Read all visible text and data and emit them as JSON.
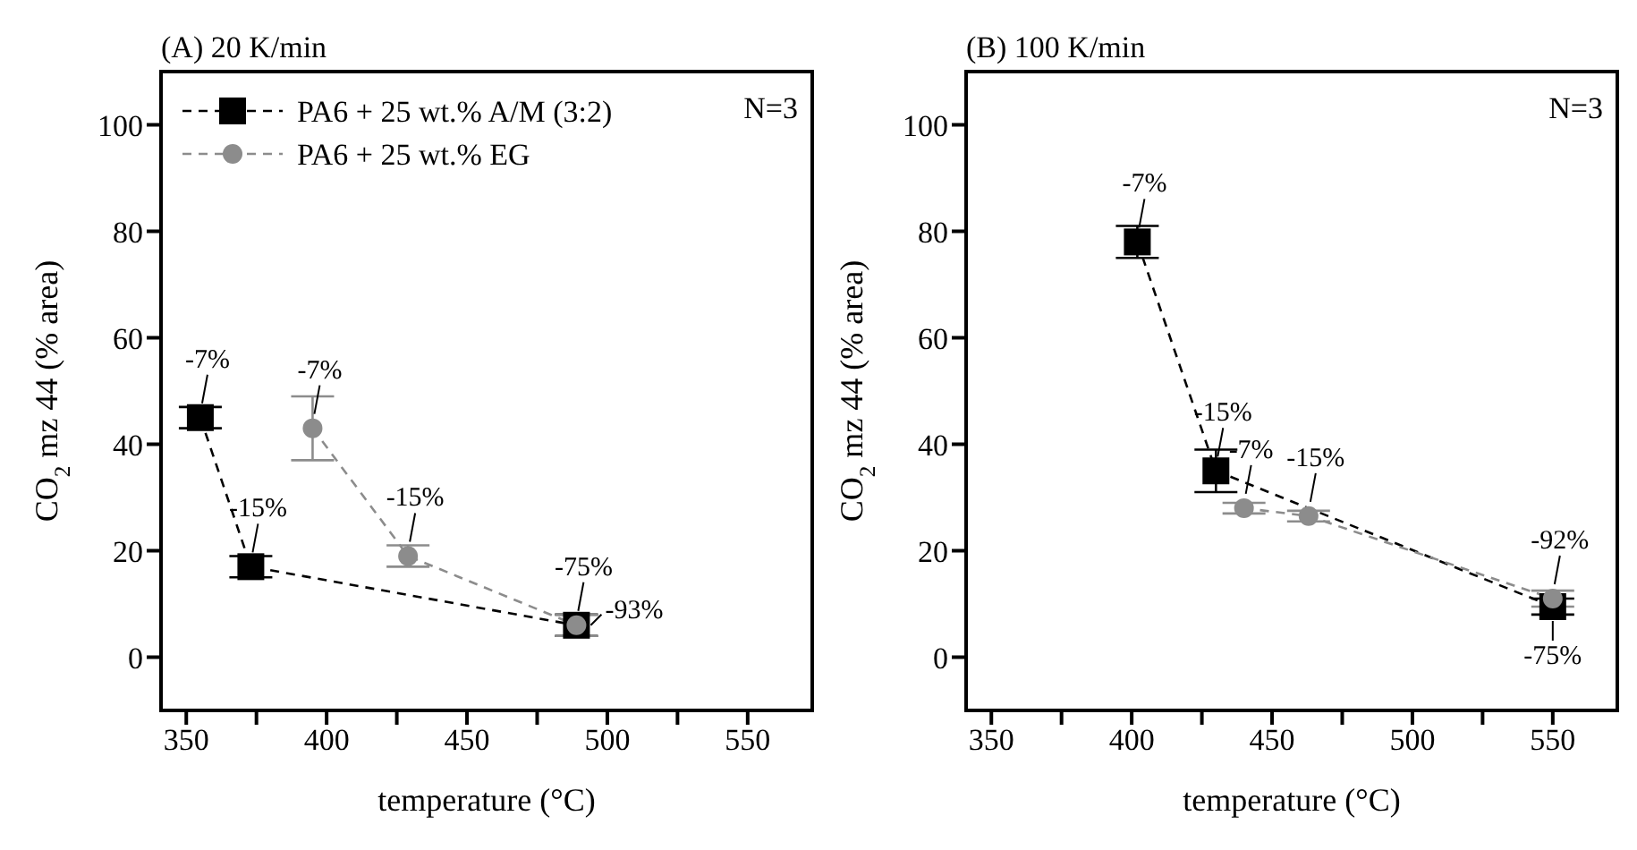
{
  "chart_data": [
    {
      "type": "line",
      "title": "(A) 20 K/min",
      "xlabel": "temperature (°C)",
      "ylabel": "CO$_{2}$ mz 44 (% area)",
      "xlim": [
        341,
        573
      ],
      "xticks": [
        350,
        {
          "value": 375,
          "label": null
        },
        400,
        {
          "value": 425,
          "label": null
        },
        450,
        {
          "value": 475,
          "label": null
        },
        500,
        {
          "value": 525,
          "label": null
        },
        550
      ],
      "ylim": [
        -10,
        110
      ],
      "yticks": [
        0,
        20,
        40,
        60,
        80,
        100
      ],
      "legend": "top left",
      "line_style": "dashed",
      "series": [
        {
          "name": "PA6 + 25 wt.% A/M (3:2)",
          "color": "#000000",
          "marker": "square",
          "x": [
            355,
            373,
            489
          ],
          "values": [
            45,
            17,
            6
          ],
          "errors": [
            2,
            2,
            2
          ]
        },
        {
          "name": "PA6 + 25 wt.% EG",
          "color": "#8c8c8c",
          "marker": "circle",
          "x": [
            395,
            429,
            489
          ],
          "values": [
            43,
            19,
            6
          ],
          "errors": [
            6,
            2,
            2
          ]
        }
      ],
      "annotations": [
        {
          "text": "-7%",
          "x": 355,
          "y": 45
        },
        {
          "text": "-15%",
          "x": 373,
          "y": 17
        },
        {
          "text": "-7%",
          "x": 395,
          "y": 43
        },
        {
          "text": "-15%",
          "x": 429,
          "y": 19
        },
        {
          "text": "-75%",
          "x": 489,
          "y": 6
        },
        {
          "text": "-93%",
          "x": 489,
          "y": 6
        },
        "N=3"
      ]
    },
    {
      "type": "line",
      "title": "(B) 100 K/min",
      "xlabel": "temperature (°C)",
      "ylabel": "CO$_{2}$ mz 44 (% area)",
      "xlim": [
        341,
        573
      ],
      "xticks": [
        350,
        {
          "value": 375,
          "label": null
        },
        400,
        {
          "value": 425,
          "label": null
        },
        450,
        {
          "value": 475,
          "label": null
        },
        500,
        {
          "value": 525,
          "label": null
        },
        550
      ],
      "ylim": [
        -10,
        110
      ],
      "yticks": [
        0,
        20,
        40,
        60,
        80,
        100
      ],
      "line_style": "dashed",
      "series": [
        {
          "color": "#000000",
          "marker": "square",
          "x": [
            402,
            430,
            550
          ],
          "values": [
            78,
            35,
            9.5
          ],
          "errors": [
            3,
            4,
            1.5
          ]
        },
        {
          "color": "#8c8c8c",
          "marker": "circle",
          "x": [
            440,
            463,
            550
          ],
          "values": [
            28,
            26.5,
            11
          ],
          "errors": [
            1,
            1,
            1.5
          ]
        }
      ],
      "annotations": [
        {
          "text": "-7%",
          "x": 402,
          "y": 78
        },
        {
          "text": "-15%",
          "x": 430,
          "y": 35
        },
        {
          "text": "-7%",
          "x": 440,
          "y": 28
        },
        {
          "text": "-15%",
          "x": 463,
          "y": 26.5
        },
        {
          "text": "-92%",
          "x": 550,
          "y": 11
        },
        {
          "text": "-75%",
          "x": 550,
          "y": 9.5
        },
        "N=3"
      ]
    }
  ]
}
